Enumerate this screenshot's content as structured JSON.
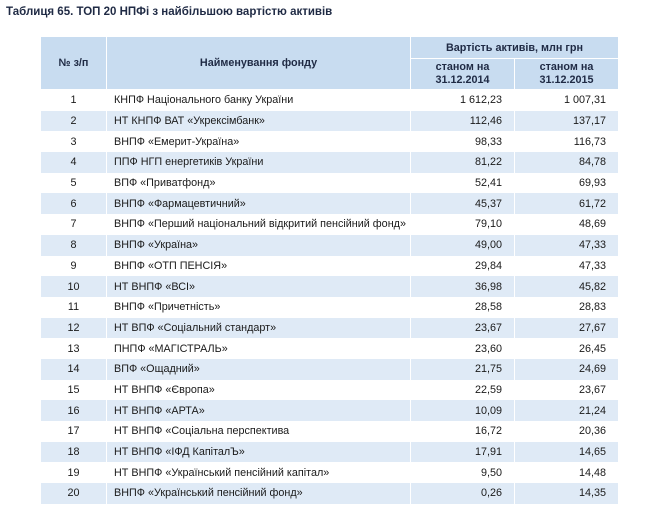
{
  "caption": "Таблиця 65. ТОП 20 НПФі з найбільшою вартістю активів",
  "headers": {
    "number": "№ з/п",
    "name": "Найменування фонду",
    "value_group": "Вартість активів, млн грн",
    "col_2014_line1": "станом на",
    "col_2014_line2": "31.12.2014",
    "col_2015_line1": "станом на",
    "col_2015_line2": "31.12.2015"
  },
  "rows": [
    {
      "n": "1",
      "name": "КНПФ Національного банку України",
      "v2014": "1 612,23",
      "v2015": "1 007,31"
    },
    {
      "n": "2",
      "name": "НТ КНПФ ВАТ «Укрексімбанк»",
      "v2014": "112,46",
      "v2015": "137,17"
    },
    {
      "n": "3",
      "name": "ВНПФ «Емерит-Україна»",
      "v2014": "98,33",
      "v2015": "116,73"
    },
    {
      "n": "4",
      "name": "ППФ НГП енергетиків України",
      "v2014": "81,22",
      "v2015": "84,78"
    },
    {
      "n": "5",
      "name": "ВПФ «Приватфонд»",
      "v2014": "52,41",
      "v2015": "69,93"
    },
    {
      "n": "6",
      "name": "ВНПФ «Фармацевтичний»",
      "v2014": "45,37",
      "v2015": "61,72"
    },
    {
      "n": "7",
      "name": "ВНПФ «Перший національний відкритий пенсійний фонд»",
      "v2014": "79,10",
      "v2015": "48,69"
    },
    {
      "n": "8",
      "name": "ВНПФ «Україна»",
      "v2014": "49,00",
      "v2015": "47,33"
    },
    {
      "n": "9",
      "name": "ВНПФ «ОТП ПЕНСІЯ»",
      "v2014": "29,84",
      "v2015": "47,33"
    },
    {
      "n": "10",
      "name": "НТ ВНПФ «ВСІ»",
      "v2014": "36,98",
      "v2015": "45,82"
    },
    {
      "n": "11",
      "name": "ВНПФ «Причетність»",
      "v2014": "28,58",
      "v2015": "28,83"
    },
    {
      "n": "12",
      "name": "НТ ВПФ «Соціальний стандарт»",
      "v2014": "23,67",
      "v2015": "27,67"
    },
    {
      "n": "13",
      "name": "ПНПФ «МАГІСТРАЛЬ»",
      "v2014": "23,60",
      "v2015": "26,45"
    },
    {
      "n": "14",
      "name": "ВПФ «Ощадний»",
      "v2014": "21,75",
      "v2015": "24,69"
    },
    {
      "n": "15",
      "name": "НТ ВНПФ «Європа»",
      "v2014": "22,59",
      "v2015": "23,67"
    },
    {
      "n": "16",
      "name": "НТ ВНПФ «АРТА»",
      "v2014": "10,09",
      "v2015": "21,24"
    },
    {
      "n": "17",
      "name": "НТ ВНПФ «Соціальна перспектива",
      "v2014": "16,72",
      "v2015": "20,36"
    },
    {
      "n": "18",
      "name": "НТ ВНПФ «ІФД КапіталЪ»",
      "v2014": "17,91",
      "v2015": "14,65"
    },
    {
      "n": "19",
      "name": "НТ ВНПФ «Український пенсійний капітал»",
      "v2014": "9,50",
      "v2015": "14,48"
    },
    {
      "n": "20",
      "name": "ВНПФ «Український пенсійний фонд»",
      "v2014": "0,26",
      "v2015": "14,35"
    }
  ]
}
